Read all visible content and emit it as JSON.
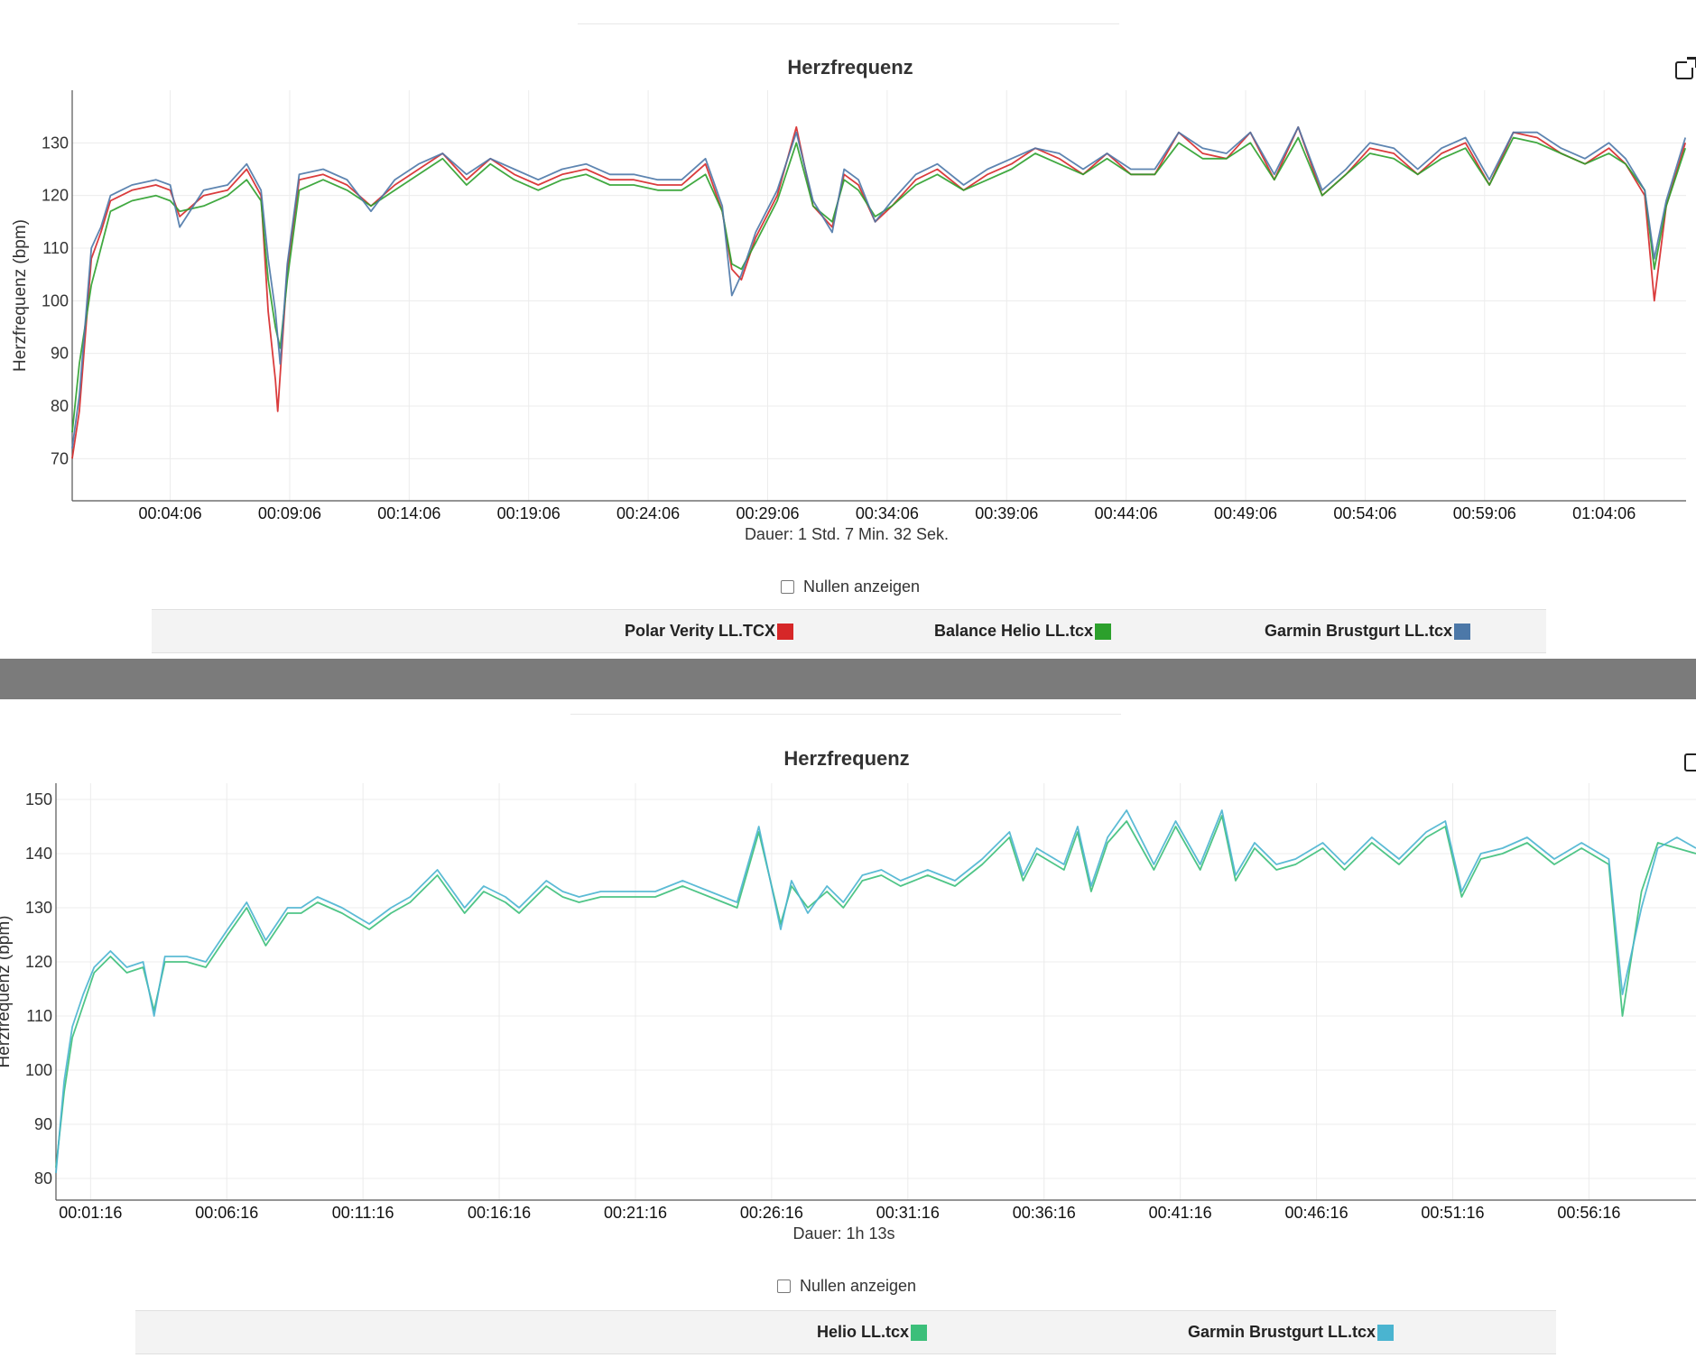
{
  "charts": [
    {
      "title": "Herzfrequenz",
      "duration": "Dauer: 1 Std. 7 Min. 32 Sek.",
      "zero_checkbox_label": "Nullen anzeigen",
      "chart_data": {
        "type": "line",
        "title": "Herzfrequenz",
        "ylabel": "Herzfrequenz (bpm)",
        "xlabel": "Dauer: 1 Std. 7 Min. 32 Sek.",
        "x_unit": "minutes",
        "xlim": [
          0,
          67.53
        ],
        "ylim": [
          62,
          140
        ],
        "yticks": [
          70,
          80,
          90,
          100,
          110,
          120,
          130
        ],
        "xticks": [
          4.1,
          9.1,
          14.1,
          19.1,
          24.1,
          29.1,
          34.1,
          39.1,
          44.1,
          49.1,
          54.1,
          59.1,
          64.1
        ],
        "xtick_labels": [
          "00:04:06",
          "00:09:06",
          "00:14:06",
          "00:19:06",
          "00:24:06",
          "00:29:06",
          "00:34:06",
          "00:39:06",
          "00:44:06",
          "00:49:06",
          "00:54:06",
          "00:59:06",
          "01:04:06"
        ],
        "grid": true,
        "legend_position": "bottom",
        "series": [
          {
            "name": "Polar Verity LL.TCX",
            "color": "#d62728",
            "x": [
              0,
              0.3,
              0.8,
              1.2,
              1.6,
              2.5,
              3.5,
              4.1,
              4.5,
              5.5,
              6.5,
              7.3,
              7.9,
              8.2,
              8.5,
              8.6,
              9.0,
              9.5,
              10.5,
              11.5,
              12.5,
              13.5,
              14.5,
              15.5,
              16.5,
              17.5,
              18.5,
              19.5,
              20.5,
              21.5,
              22.5,
              23.5,
              24.5,
              25.5,
              26.5,
              27.2,
              27.6,
              28.0,
              28.6,
              29.5,
              30.3,
              31.0,
              31.8,
              32.3,
              32.9,
              33.6,
              34.3,
              35.3,
              36.2,
              37.3,
              38.3,
              39.3,
              40.3,
              41.3,
              42.3,
              43.3,
              44.3,
              45.3,
              46.3,
              47.3,
              48.3,
              49.3,
              50.3,
              51.3,
              52.3,
              53.3,
              54.3,
              55.3,
              56.3,
              57.3,
              58.3,
              59.3,
              60.3,
              61.3,
              62.3,
              63.3,
              64.3,
              65.0,
              65.8,
              66.2,
              66.7,
              67.5
            ],
            "y": [
              70,
              79,
              108,
              113,
              119,
              121,
              122,
              121,
              116,
              120,
              121,
              125,
              120,
              98,
              85,
              79,
              106,
              123,
              124,
              122,
              118,
              122,
              125,
              128,
              123,
              127,
              124,
              122,
              124,
              125,
              123,
              123,
              122,
              122,
              126,
              117,
              106,
              104,
              112,
              120,
              133,
              118,
              114,
              124,
              122,
              115,
              118,
              123,
              125,
              121,
              124,
              126,
              129,
              127,
              124,
              128,
              124,
              124,
              132,
              128,
              127,
              132,
              123,
              133,
              120,
              124,
              129,
              128,
              124,
              128,
              130,
              122,
              132,
              131,
              128,
              126,
              129,
              126,
              120,
              100,
              118,
              130
            ]
          },
          {
            "name": "Balance Helio LL.tcx",
            "color": "#2ca02c",
            "x": [
              0,
              0.3,
              0.8,
              1.2,
              1.6,
              2.5,
              3.5,
              4.1,
              4.5,
              5.5,
              6.5,
              7.3,
              7.9,
              8.2,
              8.5,
              8.7,
              9.0,
              9.5,
              10.5,
              11.5,
              12.5,
              13.5,
              14.5,
              15.5,
              16.5,
              17.5,
              18.5,
              19.5,
              20.5,
              21.5,
              22.5,
              23.5,
              24.5,
              25.5,
              26.5,
              27.2,
              27.6,
              28.0,
              28.6,
              29.5,
              30.3,
              31.0,
              31.8,
              32.3,
              32.9,
              33.6,
              34.3,
              35.3,
              36.2,
              37.3,
              38.3,
              39.3,
              40.3,
              41.3,
              42.3,
              43.3,
              44.3,
              45.3,
              46.3,
              47.3,
              48.3,
              49.3,
              50.3,
              51.3,
              52.3,
              53.3,
              54.3,
              55.3,
              56.3,
              57.3,
              58.3,
              59.3,
              60.3,
              61.3,
              62.3,
              63.3,
              64.3,
              65.0,
              65.8,
              66.2,
              66.7,
              67.5
            ],
            "y": [
              75,
              88,
              103,
              110,
              117,
              119,
              120,
              119,
              117,
              118,
              120,
              123,
              119,
              104,
              95,
              91,
              104,
              121,
              123,
              121,
              118,
              121,
              124,
              127,
              122,
              126,
              123,
              121,
              123,
              124,
              122,
              122,
              121,
              121,
              124,
              117,
              107,
              106,
              111,
              119,
              130,
              118,
              115,
              123,
              121,
              116,
              118,
              122,
              124,
              121,
              123,
              125,
              128,
              126,
              124,
              127,
              124,
              124,
              130,
              127,
              127,
              130,
              123,
              131,
              120,
              124,
              128,
              127,
              124,
              127,
              129,
              122,
              131,
              130,
              128,
              126,
              128,
              126,
              121,
              106,
              118,
              129
            ]
          },
          {
            "name": "Garmin Brustgurt LL.tcx",
            "color": "#4c78a8",
            "x": [
              0,
              0.3,
              0.8,
              1.2,
              1.6,
              2.5,
              3.5,
              4.1,
              4.5,
              5.5,
              6.5,
              7.3,
              7.9,
              8.2,
              8.5,
              8.7,
              9.0,
              9.5,
              10.5,
              11.5,
              12.5,
              13.5,
              14.5,
              15.5,
              16.5,
              17.5,
              18.5,
              19.5,
              20.5,
              21.5,
              22.5,
              23.5,
              24.5,
              25.5,
              26.5,
              27.2,
              27.6,
              28.0,
              28.6,
              29.5,
              30.3,
              31.0,
              31.8,
              32.3,
              32.9,
              33.6,
              34.3,
              35.3,
              36.2,
              37.3,
              38.3,
              39.3,
              40.3,
              41.3,
              42.3,
              43.3,
              44.3,
              45.3,
              46.3,
              47.3,
              48.3,
              49.3,
              50.3,
              51.3,
              52.3,
              53.3,
              54.3,
              55.3,
              56.3,
              57.3,
              58.3,
              59.3,
              60.3,
              61.3,
              62.3,
              63.3,
              64.3,
              65.0,
              65.8,
              66.2,
              66.7,
              67.5
            ],
            "y": [
              72,
              82,
              110,
              114,
              120,
              122,
              123,
              122,
              114,
              121,
              122,
              126,
              121,
              108,
              98,
              88,
              107,
              124,
              125,
              123,
              117,
              123,
              126,
              128,
              124,
              127,
              125,
              123,
              125,
              126,
              124,
              124,
              123,
              123,
              127,
              118,
              101,
              105,
              113,
              121,
              132,
              119,
              113,
              125,
              123,
              115,
              119,
              124,
              126,
              122,
              125,
              127,
              129,
              128,
              125,
              128,
              125,
              125,
              132,
              129,
              128,
              132,
              124,
              133,
              121,
              125,
              130,
              129,
              125,
              129,
              131,
              123,
              132,
              132,
              129,
              127,
              130,
              127,
              121,
              108,
              119,
              131
            ]
          }
        ]
      },
      "legend": [
        {
          "label": "Polar Verity LL.TCX",
          "color": "#d62728"
        },
        {
          "label": "Balance Helio LL.tcx",
          "color": "#2ca02c"
        },
        {
          "label": "Garmin Brustgurt LL.tcx",
          "color": "#4c78a8"
        }
      ]
    },
    {
      "title": "Herzfrequenz",
      "duration": "Dauer: 1h 13s",
      "zero_checkbox_label": "Nullen anzeigen",
      "chart_data": {
        "type": "line",
        "title": "Herzfrequenz",
        "ylabel": "Herzfrequenz (bpm)",
        "xlabel": "Dauer: 1h 13s",
        "x_unit": "minutes",
        "xlim": [
          0,
          60.2
        ],
        "ylim": [
          76,
          153
        ],
        "yticks": [
          80,
          90,
          100,
          110,
          120,
          130,
          140,
          150
        ],
        "xticks": [
          1.27,
          6.27,
          11.27,
          16.27,
          21.27,
          26.27,
          31.27,
          36.27,
          41.27,
          46.27,
          51.27,
          56.27
        ],
        "xtick_labels": [
          "00:01:16",
          "00:06:16",
          "00:11:16",
          "00:16:16",
          "00:21:16",
          "00:26:16",
          "00:31:16",
          "00:36:16",
          "00:41:16",
          "00:46:16",
          "00:51:16",
          "00:56:16"
        ],
        "grid": true,
        "legend_position": "bottom",
        "series": [
          {
            "name": "Helio LL.tcx",
            "color": "#3cbf7a",
            "x": [
              0,
              0.3,
              0.6,
              1.0,
              1.4,
              2.0,
              2.6,
              3.2,
              3.6,
              4.0,
              4.8,
              5.5,
              6.3,
              7.0,
              7.7,
              8.5,
              9.0,
              9.6,
              10.5,
              11.5,
              12.3,
              13.0,
              14.0,
              15.0,
              15.7,
              16.5,
              17.0,
              18.0,
              18.6,
              19.2,
              20.0,
              21.0,
              22.0,
              23.0,
              24.0,
              25.0,
              25.8,
              26.6,
              27.0,
              27.6,
              28.3,
              28.9,
              29.6,
              30.3,
              31.0,
              32.0,
              33.0,
              34.0,
              35.0,
              35.5,
              36.0,
              37.0,
              37.5,
              38.0,
              38.6,
              39.3,
              40.3,
              41.1,
              42.0,
              42.8,
              43.3,
              44.0,
              44.8,
              45.5,
              46.5,
              47.3,
              48.3,
              49.3,
              50.3,
              51.0,
              51.6,
              52.3,
              53.1,
              54.0,
              55.0,
              56.0,
              57.0,
              57.5,
              58.2,
              58.8,
              59.5,
              60.2
            ],
            "y": [
              82,
              96,
              106,
              112,
              118,
              121,
              118,
              119,
              111,
              120,
              120,
              119,
              125,
              130,
              123,
              129,
              129,
              131,
              129,
              126,
              129,
              131,
              136,
              129,
              133,
              131,
              129,
              134,
              132,
              131,
              132,
              132,
              132,
              134,
              132,
              130,
              144,
              127,
              134,
              130,
              133,
              130,
              135,
              136,
              134,
              136,
              134,
              138,
              143,
              135,
              140,
              137,
              144,
              133,
              142,
              146,
              137,
              145,
              137,
              147,
              135,
              141,
              137,
              138,
              141,
              137,
              142,
              138,
              143,
              145,
              132,
              139,
              140,
              142,
              138,
              141,
              138,
              110,
              133,
              142,
              141,
              140
            ]
          },
          {
            "name": "Garmin Brustgurt LL.tcx",
            "color": "#4ab4d0",
            "x": [
              0,
              0.3,
              0.6,
              1.0,
              1.4,
              2.0,
              2.6,
              3.2,
              3.6,
              4.0,
              4.8,
              5.5,
              6.3,
              7.0,
              7.7,
              8.5,
              9.0,
              9.6,
              10.5,
              11.5,
              12.3,
              13.0,
              14.0,
              15.0,
              15.7,
              16.5,
              17.0,
              18.0,
              18.6,
              19.2,
              20.0,
              21.0,
              22.0,
              23.0,
              24.0,
              25.0,
              25.8,
              26.6,
              27.0,
              27.6,
              28.3,
              28.9,
              29.6,
              30.3,
              31.0,
              32.0,
              33.0,
              34.0,
              35.0,
              35.5,
              36.0,
              37.0,
              37.5,
              38.0,
              38.6,
              39.3,
              40.3,
              41.1,
              42.0,
              42.8,
              43.3,
              44.0,
              44.8,
              45.5,
              46.5,
              47.3,
              48.3,
              49.3,
              50.3,
              51.0,
              51.6,
              52.3,
              53.1,
              54.0,
              55.0,
              56.0,
              57.0,
              57.5,
              58.2,
              58.8,
              59.5,
              60.2
            ],
            "y": [
              81,
              98,
              108,
              114,
              119,
              122,
              119,
              120,
              110,
              121,
              121,
              120,
              126,
              131,
              124,
              130,
              130,
              132,
              130,
              127,
              130,
              132,
              137,
              130,
              134,
              132,
              130,
              135,
              133,
              132,
              133,
              133,
              133,
              135,
              133,
              131,
              145,
              126,
              135,
              129,
              134,
              131,
              136,
              137,
              135,
              137,
              135,
              139,
              144,
              136,
              141,
              138,
              145,
              134,
              143,
              148,
              138,
              146,
              138,
              148,
              136,
              142,
              138,
              139,
              142,
              138,
              143,
              139,
              144,
              146,
              133,
              140,
              141,
              143,
              139,
              142,
              139,
              114,
              130,
              141,
              143,
              141
            ]
          }
        ]
      },
      "legend": [
        {
          "label": "Helio LL.tcx",
          "color": "#3cbf7a"
        },
        {
          "label": "Garmin Brustgurt LL.tcx",
          "color": "#4ab4d0"
        }
      ]
    }
  ]
}
